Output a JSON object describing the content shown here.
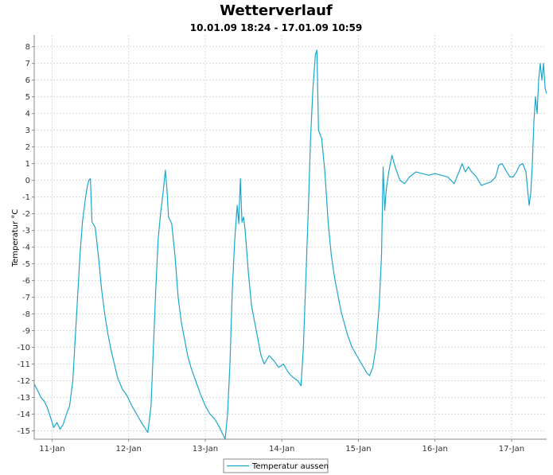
{
  "chart_data": {
    "type": "line",
    "title": "Wetterverlauf",
    "subtitle": "10.01.09 18:24 - 17.01.09 10:59",
    "xlabel": "",
    "ylabel": "Temperatur °C",
    "x_tick_labels": [
      "11-Jan",
      "12-Jan",
      "13-Jan",
      "14-Jan",
      "15-Jan",
      "16-Jan",
      "17-Jan"
    ],
    "y_tick_labels": [
      "-15",
      "-14",
      "-13",
      "-12",
      "-11",
      "-10",
      "-9",
      "-8",
      "-7",
      "-6",
      "-5",
      "-4",
      "-3",
      "-2",
      "-1",
      "0",
      "1",
      "2",
      "3",
      "4",
      "5",
      "6",
      "7",
      "8"
    ],
    "ylim": [
      -15.5,
      8.7
    ],
    "xlim": [
      "2009-01-10 18:24",
      "2009-01-17 10:59"
    ],
    "grid": true,
    "legend": "bottom-center",
    "colors": {
      "series": "#1ba6cc"
    },
    "series": [
      {
        "name": "Temperatur aussen",
        "points": [
          [
            "2009-01-10 18:24",
            -12.2
          ],
          [
            "2009-01-10 19:30",
            -12.6
          ],
          [
            "2009-01-10 20:30",
            -13.0
          ],
          [
            "2009-01-10 21:30",
            -13.2
          ],
          [
            "2009-01-10 22:30",
            -13.6
          ],
          [
            "2009-01-10 23:30",
            -14.2
          ],
          [
            "2009-01-11 00:30",
            -14.8
          ],
          [
            "2009-01-11 01:30",
            -14.5
          ],
          [
            "2009-01-11 02:30",
            -14.9
          ],
          [
            "2009-01-11 03:30",
            -14.6
          ],
          [
            "2009-01-11 04:30",
            -14.0
          ],
          [
            "2009-01-11 05:30",
            -13.5
          ],
          [
            "2009-01-11 06:30",
            -12.0
          ],
          [
            "2009-01-11 07:15",
            -9.5
          ],
          [
            "2009-01-11 08:00",
            -7.0
          ],
          [
            "2009-01-11 08:45",
            -4.5
          ],
          [
            "2009-01-11 09:30",
            -2.5
          ],
          [
            "2009-01-11 10:30",
            -1.0
          ],
          [
            "2009-01-11 11:00",
            -0.4
          ],
          [
            "2009-01-11 11:30",
            0.0
          ],
          [
            "2009-01-11 12:00",
            0.1
          ],
          [
            "2009-01-11 12:30",
            -2.5
          ],
          [
            "2009-01-11 13:30",
            -2.8
          ],
          [
            "2009-01-11 14:30",
            -4.5
          ],
          [
            "2009-01-11 15:30",
            -6.5
          ],
          [
            "2009-01-11 16:30",
            -8.0
          ],
          [
            "2009-01-11 17:30",
            -9.2
          ],
          [
            "2009-01-11 18:30",
            -10.2
          ],
          [
            "2009-01-11 19:30",
            -11.0
          ],
          [
            "2009-01-11 20:30",
            -11.8
          ],
          [
            "2009-01-11 22:00",
            -12.5
          ],
          [
            "2009-01-11 23:30",
            -12.9
          ],
          [
            "2009-01-12 01:00",
            -13.5
          ],
          [
            "2009-01-12 02:30",
            -14.0
          ],
          [
            "2009-01-12 04:00",
            -14.5
          ],
          [
            "2009-01-12 05:00",
            -14.8
          ],
          [
            "2009-01-12 06:00",
            -15.1
          ],
          [
            "2009-01-12 07:00",
            -13.5
          ],
          [
            "2009-01-12 07:45",
            -10.0
          ],
          [
            "2009-01-12 08:30",
            -6.5
          ],
          [
            "2009-01-12 09:15",
            -3.5
          ],
          [
            "2009-01-12 10:00",
            -2.0
          ],
          [
            "2009-01-12 10:45",
            -0.8
          ],
          [
            "2009-01-12 11:30",
            0.6
          ],
          [
            "2009-01-12 12:00",
            -0.5
          ],
          [
            "2009-01-12 12:30",
            -2.2
          ],
          [
            "2009-01-12 13:30",
            -2.6
          ],
          [
            "2009-01-12 14:30",
            -4.5
          ],
          [
            "2009-01-12 15:30",
            -7.0
          ],
          [
            "2009-01-12 16:30",
            -8.5
          ],
          [
            "2009-01-12 17:30",
            -9.5
          ],
          [
            "2009-01-12 18:30",
            -10.5
          ],
          [
            "2009-01-12 19:30",
            -11.2
          ],
          [
            "2009-01-12 21:00",
            -12.0
          ],
          [
            "2009-01-12 22:30",
            -12.8
          ],
          [
            "2009-01-13 00:00",
            -13.5
          ],
          [
            "2009-01-13 01:30",
            -14.0
          ],
          [
            "2009-01-13 03:00",
            -14.3
          ],
          [
            "2009-01-13 04:30",
            -14.8
          ],
          [
            "2009-01-13 05:30",
            -15.2
          ],
          [
            "2009-01-13 06:15",
            -15.5
          ],
          [
            "2009-01-13 07:00",
            -14.0
          ],
          [
            "2009-01-13 07:45",
            -11.0
          ],
          [
            "2009-01-13 08:30",
            -6.5
          ],
          [
            "2009-01-13 09:15",
            -3.5
          ],
          [
            "2009-01-13 10:00",
            -1.5
          ],
          [
            "2009-01-13 10:30",
            -2.6
          ],
          [
            "2009-01-13 11:00",
            0.1
          ],
          [
            "2009-01-13 11:30",
            -2.5
          ],
          [
            "2009-01-13 12:00",
            -2.2
          ],
          [
            "2009-01-13 12:30",
            -3.0
          ],
          [
            "2009-01-13 13:30",
            -5.5
          ],
          [
            "2009-01-13 14:30",
            -7.5
          ],
          [
            "2009-01-13 15:30",
            -8.5
          ],
          [
            "2009-01-13 16:30",
            -9.5
          ],
          [
            "2009-01-13 17:30",
            -10.5
          ],
          [
            "2009-01-13 18:30",
            -11.0
          ],
          [
            "2009-01-13 20:00",
            -10.5
          ],
          [
            "2009-01-13 21:30",
            -10.8
          ],
          [
            "2009-01-13 23:00",
            -11.2
          ],
          [
            "2009-01-14 00:30",
            -11.0
          ],
          [
            "2009-01-14 02:00",
            -11.5
          ],
          [
            "2009-01-14 03:30",
            -11.8
          ],
          [
            "2009-01-14 05:00",
            -12.0
          ],
          [
            "2009-01-14 06:00",
            -12.3
          ],
          [
            "2009-01-14 06:45",
            -10.0
          ],
          [
            "2009-01-14 07:30",
            -6.0
          ],
          [
            "2009-01-14 08:15",
            -2.0
          ],
          [
            "2009-01-14 09:00",
            2.5
          ],
          [
            "2009-01-14 09:45",
            5.5
          ],
          [
            "2009-01-14 10:30",
            7.5
          ],
          [
            "2009-01-14 11:00",
            7.8
          ],
          [
            "2009-01-14 11:30",
            3.0
          ],
          [
            "2009-01-14 12:30",
            2.5
          ],
          [
            "2009-01-14 13:30",
            0.5
          ],
          [
            "2009-01-14 14:30",
            -2.5
          ],
          [
            "2009-01-14 15:30",
            -4.5
          ],
          [
            "2009-01-14 16:30",
            -5.8
          ],
          [
            "2009-01-14 17:30",
            -6.8
          ],
          [
            "2009-01-14 18:30",
            -7.8
          ],
          [
            "2009-01-14 19:30",
            -8.5
          ],
          [
            "2009-01-14 20:30",
            -9.2
          ],
          [
            "2009-01-14 22:00",
            -10.0
          ],
          [
            "2009-01-14 23:30",
            -10.5
          ],
          [
            "2009-01-15 01:00",
            -11.0
          ],
          [
            "2009-01-15 02:30",
            -11.5
          ],
          [
            "2009-01-15 03:30",
            -11.7
          ],
          [
            "2009-01-15 04:30",
            -11.2
          ],
          [
            "2009-01-15 05:30",
            -10.0
          ],
          [
            "2009-01-15 06:30",
            -7.5
          ],
          [
            "2009-01-15 07:15",
            -4.5
          ],
          [
            "2009-01-15 07:45",
            0.8
          ],
          [
            "2009-01-15 08:15",
            -1.8
          ],
          [
            "2009-01-15 08:45",
            -0.5
          ],
          [
            "2009-01-15 09:30",
            0.5
          ],
          [
            "2009-01-15 10:30",
            1.5
          ],
          [
            "2009-01-15 11:30",
            0.8
          ],
          [
            "2009-01-15 13:00",
            0.0
          ],
          [
            "2009-01-15 14:30",
            -0.2
          ],
          [
            "2009-01-15 16:00",
            0.2
          ],
          [
            "2009-01-15 18:00",
            0.5
          ],
          [
            "2009-01-15 20:00",
            0.4
          ],
          [
            "2009-01-15 22:00",
            0.3
          ],
          [
            "2009-01-16 00:00",
            0.4
          ],
          [
            "2009-01-16 02:00",
            0.3
          ],
          [
            "2009-01-16 04:00",
            0.2
          ],
          [
            "2009-01-16 06:00",
            -0.2
          ],
          [
            "2009-01-16 07:30",
            0.5
          ],
          [
            "2009-01-16 08:30",
            1.0
          ],
          [
            "2009-01-16 09:30",
            0.5
          ],
          [
            "2009-01-16 10:30",
            0.8
          ],
          [
            "2009-01-16 11:30",
            0.5
          ],
          [
            "2009-01-16 13:00",
            0.2
          ],
          [
            "2009-01-16 14:30",
            -0.3
          ],
          [
            "2009-01-16 16:00",
            -0.2
          ],
          [
            "2009-01-16 17:30",
            -0.1
          ],
          [
            "2009-01-16 19:00",
            0.2
          ],
          [
            "2009-01-16 20:00",
            0.9
          ],
          [
            "2009-01-16 21:00",
            1.0
          ],
          [
            "2009-01-16 22:30",
            0.5
          ],
          [
            "2009-01-16 23:30",
            0.2
          ],
          [
            "2009-01-17 00:30",
            0.2
          ],
          [
            "2009-01-17 01:30",
            0.5
          ],
          [
            "2009-01-17 02:30",
            0.9
          ],
          [
            "2009-01-17 03:30",
            1.0
          ],
          [
            "2009-01-17 04:30",
            0.5
          ],
          [
            "2009-01-17 05:00",
            -0.5
          ],
          [
            "2009-01-17 05:30",
            -1.5
          ],
          [
            "2009-01-17 06:00",
            -0.8
          ],
          [
            "2009-01-17 06:30",
            1.0
          ],
          [
            "2009-01-17 07:00",
            3.5
          ],
          [
            "2009-01-17 07:30",
            5.0
          ],
          [
            "2009-01-17 08:00",
            4.0
          ],
          [
            "2009-01-17 08:30",
            6.0
          ],
          [
            "2009-01-17 09:00",
            7.0
          ],
          [
            "2009-01-17 09:30",
            6.0
          ],
          [
            "2009-01-17 10:00",
            7.0
          ],
          [
            "2009-01-17 10:30",
            5.5
          ],
          [
            "2009-01-17 10:59",
            5.2
          ]
        ]
      }
    ]
  }
}
